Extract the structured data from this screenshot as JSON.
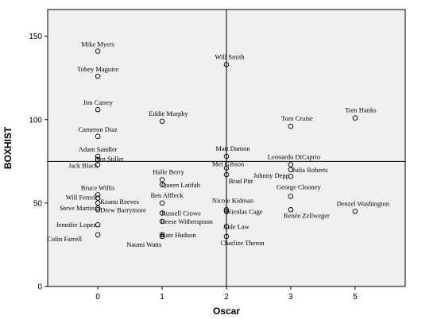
{
  "chart_data": {
    "type": "scatter",
    "xlabel": "Oscar",
    "ylabel": "BOXHIST",
    "x_tick_labels": [
      {
        "value": 0,
        "label": "0"
      },
      {
        "value": 1,
        "label": "1"
      },
      {
        "value": 2,
        "label": "2"
      },
      {
        "value": 3,
        "label": "3"
      },
      {
        "value": 4,
        "label": "5"
      }
    ],
    "y_ticks": [
      0,
      50,
      100,
      150
    ],
    "xlim": [
      -0.78,
      4.78
    ],
    "ylim": [
      0,
      166
    ],
    "reference_lines": {
      "x": 2,
      "y": 75
    },
    "grid": false,
    "points": [
      {
        "name": "Mike Myers",
        "x": 0,
        "y": 141
      },
      {
        "name": "Tobey Maguire",
        "x": 0,
        "y": 126
      },
      {
        "name": "Jim Carrey",
        "x": 0,
        "y": 106
      },
      {
        "name": "Cameron Diaz",
        "x": 0,
        "y": 90
      },
      {
        "name": "Adam Sandler",
        "x": 0,
        "y": 78
      },
      {
        "name": "Ben Stiller",
        "x": 0,
        "y": 76
      },
      {
        "name": "Jack Black",
        "x": 0,
        "y": 73
      },
      {
        "name": "Bruce Willis",
        "x": 0,
        "y": 55
      },
      {
        "name": "Will Ferrell",
        "x": 0,
        "y": 53
      },
      {
        "name": "Keanu Reeves",
        "x": 0,
        "y": 50
      },
      {
        "name": "Steve Martin",
        "x": 0,
        "y": 47
      },
      {
        "name": "Drew Barrymore",
        "x": 0,
        "y": 46
      },
      {
        "name": "Jennifer Lopez",
        "x": 0,
        "y": 37
      },
      {
        "name": "Colin Farrell",
        "x": 0,
        "y": 31
      },
      {
        "name": "Eddie Murphy",
        "x": 1,
        "y": 99
      },
      {
        "name": "Halle Berry",
        "x": 1,
        "y": 64
      },
      {
        "name": "Queen Latifah",
        "x": 1,
        "y": 61
      },
      {
        "name": "Ben Affleck",
        "x": 1,
        "y": 50
      },
      {
        "name": "Russell Crowe",
        "x": 1,
        "y": 44
      },
      {
        "name": "Reese Witherspoon",
        "x": 1,
        "y": 39
      },
      {
        "name": "Kate Hudson",
        "x": 1,
        "y": 31
      },
      {
        "name": "Naomi Watts",
        "x": 1,
        "y": 30
      },
      {
        "name": "Will Smith",
        "x": 2,
        "y": 133
      },
      {
        "name": "Matt Damon",
        "x": 2,
        "y": 78
      },
      {
        "name": "Mel Gibson",
        "x": 2,
        "y": 71
      },
      {
        "name": "Brad Pitt",
        "x": 2,
        "y": 67
      },
      {
        "name": "Nicole Kidman",
        "x": 2,
        "y": 46
      },
      {
        "name": "Nicolas Cage",
        "x": 2,
        "y": 45
      },
      {
        "name": "Jude Law",
        "x": 2,
        "y": 36
      },
      {
        "name": "Charlize Theron",
        "x": 2,
        "y": 30
      },
      {
        "name": "Tom Cruise",
        "x": 3,
        "y": 96
      },
      {
        "name": "Leonardo DiCaprio",
        "x": 3,
        "y": 73
      },
      {
        "name": "Julia Roberts",
        "x": 3,
        "y": 70
      },
      {
        "name": "Johnny Depp",
        "x": 3,
        "y": 66
      },
      {
        "name": "George Clooney",
        "x": 3,
        "y": 54
      },
      {
        "name": "Renée Zellweger",
        "x": 3,
        "y": 46
      },
      {
        "name": "Tom Hanks",
        "x": 4,
        "y": 101
      },
      {
        "name": "Denzel Washington",
        "x": 4,
        "y": 45
      }
    ]
  }
}
